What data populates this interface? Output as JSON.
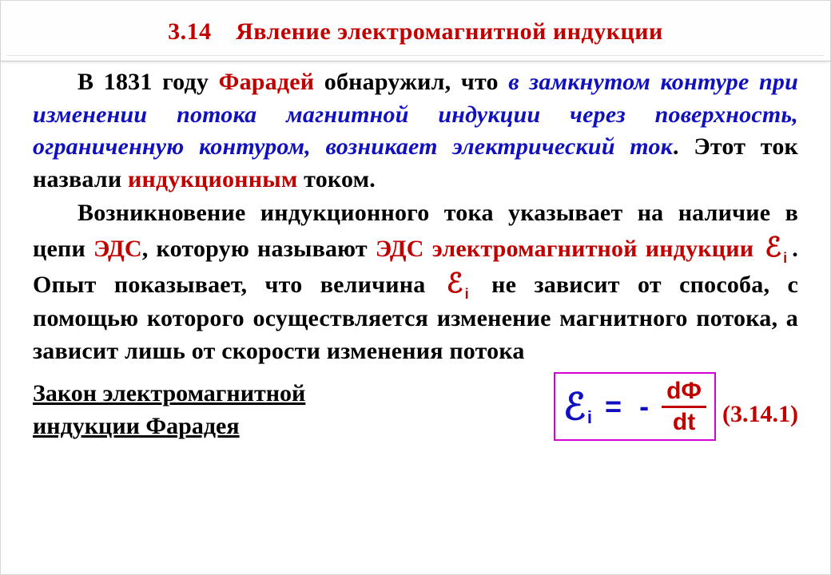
{
  "title": "3.14 Явление электромагнитной индукции",
  "colors": {
    "accent_red": "#c10000",
    "accent_blue": "#1010c0",
    "formula_border": "#d400d4",
    "text": "#000000",
    "background": "#ffffff"
  },
  "p1": {
    "indent_lead": "В 1831 году ",
    "faraday": "Фарадей",
    "after_faraday": " обнаружил, что ",
    "law_italic": "в замкнутом контуре при изменении потока магнитной индукции через поверхность, ограниченную контуром, возникает электрический ток",
    "after_law": ". Этот ток назвали ",
    "induction_word": "индукционным",
    "tail": " током."
  },
  "p2": {
    "lead": "Возникновение индукционного тока указывает на наличие в цепи ",
    "eds": "ЭДС",
    "mid": ", которую называют ",
    "eds_emi": "ЭДС электромагнитной индукции",
    "after_symbol": ". Опыт показывает, что величина ",
    "after_symbol2": " не зависит от способа, с помощью которого осуществляется изменение магнитного потока, а зависит лишь от скорости изменения потока"
  },
  "symbol": {
    "glyph": "ℰ",
    "sub": "i"
  },
  "law_label_line1": "Закон электромагнитной",
  "law_label_line2": "индукции Фарадея",
  "formula": {
    "lhs_glyph": "ℰ",
    "lhs_sub": "i",
    "eq": "=",
    "minus": "-",
    "num": "dФ",
    "den": "dt"
  },
  "eqnum": "(3.14.1)"
}
